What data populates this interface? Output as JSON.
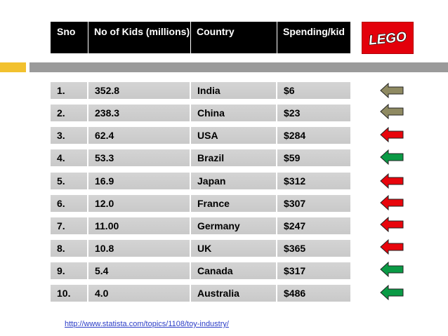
{
  "header": {
    "sno": "Sno",
    "kids": "No of Kids (millions)",
    "country": "Country",
    "spending": "Spending/kid"
  },
  "logo": {
    "text": "LEGO",
    "bg_color": "#e3000b"
  },
  "rows": [
    {
      "sno": "1.",
      "kids": "352.8",
      "country": "India",
      "spending": "$6",
      "arrow": "olive"
    },
    {
      "sno": "2.",
      "kids": "238.3",
      "country": "China",
      "spending": "$23",
      "arrow": "olive"
    },
    {
      "sno": "3.",
      "kids": "62.4",
      "country": "USA",
      "spending": "$284",
      "arrow": "red"
    },
    {
      "sno": "4.",
      "kids": "53.3",
      "country": "Brazil",
      "spending": "$59",
      "arrow": "green"
    },
    {
      "sno": "5.",
      "kids": "16.9",
      "country": "Japan",
      "spending": "$312",
      "arrow": "red"
    },
    {
      "sno": "6.",
      "kids": "12.0",
      "country": "France",
      "spending": "$307",
      "arrow": "red"
    },
    {
      "sno": "7.",
      "kids": "11.00",
      "country": "Germany",
      "spending": "$247",
      "arrow": "red"
    },
    {
      "sno": "8.",
      "kids": "10.8",
      "country": "UK",
      "spending": "$365",
      "arrow": "red"
    },
    {
      "sno": "9.",
      "kids": "5.4",
      "country": "Canada",
      "spending": "$317",
      "arrow": "green"
    },
    {
      "sno": "10.",
      "kids": "4.0",
      "country": "Australia",
      "spending": "$486",
      "arrow": "green"
    }
  ],
  "arrow_colors": {
    "olive": "#8f8a62",
    "red": "#e8050c",
    "green": "#0a9a45"
  },
  "source": "http://www.statista.com/topics/1108/toy-industry/"
}
